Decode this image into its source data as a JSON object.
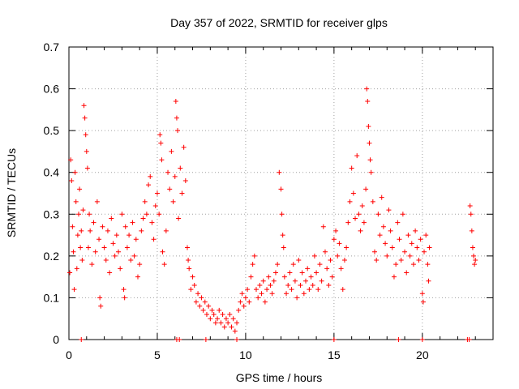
{
  "chart_data": {
    "type": "scatter",
    "title": "Day 357 of 2022, SRMTID for receiver glps",
    "xlabel": "GPS time / hours",
    "ylabel": "SRMTID / TECUs",
    "xlim": [
      0,
      24
    ],
    "ylim": [
      0,
      0.7
    ],
    "xticks": [
      0,
      5,
      10,
      15,
      20
    ],
    "yticks": [
      0,
      0.1,
      0.2,
      0.3,
      0.4,
      0.5,
      0.6,
      0.7
    ],
    "grid": true,
    "marker": "+",
    "color": "#ff0000",
    "series": [
      {
        "name": "SRMTID",
        "points": [
          [
            0.05,
            0.16
          ],
          [
            0.1,
            0.43
          ],
          [
            0.15,
            0.38
          ],
          [
            0.2,
            0.27
          ],
          [
            0.25,
            0.21
          ],
          [
            0.3,
            0.12
          ],
          [
            0.35,
            0.4
          ],
          [
            0.4,
            0.33
          ],
          [
            0.45,
            0.17
          ],
          [
            0.5,
            0.25
          ],
          [
            0.55,
            0.3
          ],
          [
            0.6,
            0.36
          ],
          [
            0.65,
            0.22
          ],
          [
            0.7,
            0.26
          ],
          [
            0.75,
            0.19
          ],
          [
            0.8,
            0.31
          ],
          [
            0.85,
            0.56
          ],
          [
            0.9,
            0.53
          ],
          [
            0.95,
            0.49
          ],
          [
            1.0,
            0.45
          ],
          [
            1.05,
            0.41
          ],
          [
            1.1,
            0.22
          ],
          [
            1.15,
            0.3
          ],
          [
            1.2,
            0.26
          ],
          [
            1.3,
            0.18
          ],
          [
            1.4,
            0.28
          ],
          [
            1.5,
            0.21
          ],
          [
            1.6,
            0.33
          ],
          [
            1.7,
            0.24
          ],
          [
            1.75,
            0.1
          ],
          [
            1.8,
            0.08
          ],
          [
            1.9,
            0.27
          ],
          [
            2.0,
            0.22
          ],
          [
            2.1,
            0.19
          ],
          [
            2.2,
            0.26
          ],
          [
            2.3,
            0.16
          ],
          [
            2.4,
            0.29
          ],
          [
            2.5,
            0.23
          ],
          [
            2.6,
            0.2
          ],
          [
            2.7,
            0.25
          ],
          [
            2.8,
            0.21
          ],
          [
            2.9,
            0.17
          ],
          [
            3.0,
            0.3
          ],
          [
            3.1,
            0.12
          ],
          [
            3.15,
            0.1
          ],
          [
            3.2,
            0.27
          ],
          [
            3.3,
            0.22
          ],
          [
            3.4,
            0.25
          ],
          [
            3.5,
            0.19
          ],
          [
            3.6,
            0.28
          ],
          [
            3.7,
            0.2
          ],
          [
            3.8,
            0.24
          ],
          [
            3.9,
            0.15
          ],
          [
            4.0,
            0.18
          ],
          [
            4.1,
            0.26
          ],
          [
            4.2,
            0.29
          ],
          [
            4.3,
            0.33
          ],
          [
            4.4,
            0.3
          ],
          [
            4.5,
            0.37
          ],
          [
            4.6,
            0.39
          ],
          [
            4.7,
            0.28
          ],
          [
            4.8,
            0.24
          ],
          [
            4.9,
            0.32
          ],
          [
            5.0,
            0.35
          ],
          [
            5.1,
            0.3
          ],
          [
            5.15,
            0.49
          ],
          [
            5.2,
            0.47
          ],
          [
            5.25,
            0.43
          ],
          [
            5.3,
            0.21
          ],
          [
            5.4,
            0.18
          ],
          [
            5.5,
            0.26
          ],
          [
            5.6,
            0.4
          ],
          [
            5.7,
            0.36
          ],
          [
            5.8,
            0.45
          ],
          [
            5.9,
            0.33
          ],
          [
            6.0,
            0.39
          ],
          [
            6.05,
            0.57
          ],
          [
            6.1,
            0.53
          ],
          [
            6.15,
            0.5
          ],
          [
            6.2,
            0.29
          ],
          [
            6.3,
            0.41
          ],
          [
            6.4,
            0.35
          ],
          [
            6.5,
            0.46
          ],
          [
            6.6,
            0.38
          ],
          [
            6.7,
            0.22
          ],
          [
            6.75,
            0.19
          ],
          [
            6.8,
            0.17
          ],
          [
            6.9,
            0.12
          ],
          [
            7.0,
            0.15
          ],
          [
            7.1,
            0.13
          ],
          [
            7.2,
            0.09
          ],
          [
            7.3,
            0.11
          ],
          [
            7.4,
            0.08
          ],
          [
            7.5,
            0.1
          ],
          [
            7.6,
            0.07
          ],
          [
            7.7,
            0.09
          ],
          [
            7.8,
            0.06
          ],
          [
            7.9,
            0.08
          ],
          [
            8.0,
            0.05
          ],
          [
            8.1,
            0.07
          ],
          [
            8.2,
            0.06
          ],
          [
            8.3,
            0.04
          ],
          [
            8.4,
            0.05
          ],
          [
            8.5,
            0.07
          ],
          [
            8.6,
            0.04
          ],
          [
            8.7,
            0.06
          ],
          [
            8.8,
            0.03
          ],
          [
            8.9,
            0.05
          ],
          [
            9.0,
            0.04
          ],
          [
            9.1,
            0.06
          ],
          [
            9.2,
            0.03
          ],
          [
            9.3,
            0.05
          ],
          [
            9.4,
            0.02
          ],
          [
            9.5,
            0.04
          ],
          [
            9.6,
            0.07
          ],
          [
            9.7,
            0.09
          ],
          [
            9.8,
            0.11
          ],
          [
            9.9,
            0.08
          ],
          [
            10.0,
            0.1
          ],
          [
            10.1,
            0.12
          ],
          [
            10.2,
            0.09
          ],
          [
            10.3,
            0.15
          ],
          [
            10.4,
            0.18
          ],
          [
            10.5,
            0.2
          ],
          [
            10.6,
            0.12
          ],
          [
            10.7,
            0.1
          ],
          [
            10.8,
            0.13
          ],
          [
            10.9,
            0.11
          ],
          [
            11.0,
            0.14
          ],
          [
            11.1,
            0.09
          ],
          [
            11.2,
            0.12
          ],
          [
            11.3,
            0.15
          ],
          [
            11.4,
            0.13
          ],
          [
            11.5,
            0.11
          ],
          [
            11.6,
            0.14
          ],
          [
            11.7,
            0.16
          ],
          [
            11.8,
            0.18
          ],
          [
            11.9,
            0.4
          ],
          [
            12.0,
            0.36
          ],
          [
            12.05,
            0.3
          ],
          [
            12.1,
            0.25
          ],
          [
            12.15,
            0.22
          ],
          [
            12.2,
            0.15
          ],
          [
            12.3,
            0.11
          ],
          [
            12.4,
            0.13
          ],
          [
            12.5,
            0.16
          ],
          [
            12.6,
            0.12
          ],
          [
            12.7,
            0.18
          ],
          [
            12.8,
            0.14
          ],
          [
            12.9,
            0.1
          ],
          [
            13.0,
            0.19
          ],
          [
            13.1,
            0.13
          ],
          [
            13.2,
            0.16
          ],
          [
            13.3,
            0.11
          ],
          [
            13.4,
            0.14
          ],
          [
            13.5,
            0.17
          ],
          [
            13.6,
            0.12
          ],
          [
            13.7,
            0.15
          ],
          [
            13.8,
            0.13
          ],
          [
            13.9,
            0.2
          ],
          [
            14.0,
            0.16
          ],
          [
            14.1,
            0.12
          ],
          [
            14.2,
            0.18
          ],
          [
            14.3,
            0.14
          ],
          [
            14.4,
            0.27
          ],
          [
            14.5,
            0.21
          ],
          [
            14.6,
            0.17
          ],
          [
            14.7,
            0.13
          ],
          [
            14.8,
            0.19
          ],
          [
            14.9,
            0.15
          ],
          [
            15.0,
            0.24
          ],
          [
            15.1,
            0.26
          ],
          [
            15.2,
            0.2
          ],
          [
            15.3,
            0.23
          ],
          [
            15.4,
            0.17
          ],
          [
            15.5,
            0.12
          ],
          [
            15.6,
            0.19
          ],
          [
            15.7,
            0.22
          ],
          [
            15.8,
            0.28
          ],
          [
            15.9,
            0.33
          ],
          [
            16.0,
            0.41
          ],
          [
            16.1,
            0.35
          ],
          [
            16.2,
            0.29
          ],
          [
            16.3,
            0.44
          ],
          [
            16.4,
            0.3
          ],
          [
            16.5,
            0.26
          ],
          [
            16.6,
            0.32
          ],
          [
            16.7,
            0.28
          ],
          [
            16.8,
            0.36
          ],
          [
            16.85,
            0.6
          ],
          [
            16.9,
            0.57
          ],
          [
            16.95,
            0.51
          ],
          [
            17.0,
            0.47
          ],
          [
            17.05,
            0.43
          ],
          [
            17.1,
            0.4
          ],
          [
            17.2,
            0.33
          ],
          [
            17.3,
            0.21
          ],
          [
            17.4,
            0.19
          ],
          [
            17.5,
            0.3
          ],
          [
            17.6,
            0.25
          ],
          [
            17.7,
            0.34
          ],
          [
            17.8,
            0.27
          ],
          [
            17.9,
            0.23
          ],
          [
            18.0,
            0.2
          ],
          [
            18.1,
            0.31
          ],
          [
            18.2,
            0.26
          ],
          [
            18.3,
            0.22
          ],
          [
            18.4,
            0.15
          ],
          [
            18.5,
            0.18
          ],
          [
            18.6,
            0.28
          ],
          [
            18.7,
            0.24
          ],
          [
            18.8,
            0.19
          ],
          [
            18.9,
            0.3
          ],
          [
            19.0,
            0.21
          ],
          [
            19.1,
            0.16
          ],
          [
            19.2,
            0.25
          ],
          [
            19.3,
            0.2
          ],
          [
            19.4,
            0.23
          ],
          [
            19.5,
            0.18
          ],
          [
            19.6,
            0.26
          ],
          [
            19.7,
            0.22
          ],
          [
            19.8,
            0.19
          ],
          [
            19.9,
            0.24
          ],
          [
            20.0,
            0.11
          ],
          [
            20.05,
            0.09
          ],
          [
            20.1,
            0.21
          ],
          [
            20.2,
            0.25
          ],
          [
            20.3,
            0.18
          ],
          [
            20.35,
            0.14
          ],
          [
            20.4,
            0.22
          ],
          [
            22.7,
            0.32
          ],
          [
            22.75,
            0.3
          ],
          [
            22.8,
            0.26
          ],
          [
            22.85,
            0.22
          ],
          [
            22.9,
            0.2
          ],
          [
            22.95,
            0.18
          ],
          [
            23.0,
            0.19
          ],
          [
            0.7,
            0.0
          ],
          [
            6.1,
            0.0
          ],
          [
            6.25,
            0.0
          ],
          [
            7.75,
            0.0
          ],
          [
            9.5,
            0.0
          ],
          [
            15.0,
            0.0
          ],
          [
            18.65,
            0.0
          ],
          [
            20.0,
            0.0
          ],
          [
            22.55,
            0.0
          ],
          [
            22.65,
            0.0
          ]
        ]
      }
    ]
  }
}
